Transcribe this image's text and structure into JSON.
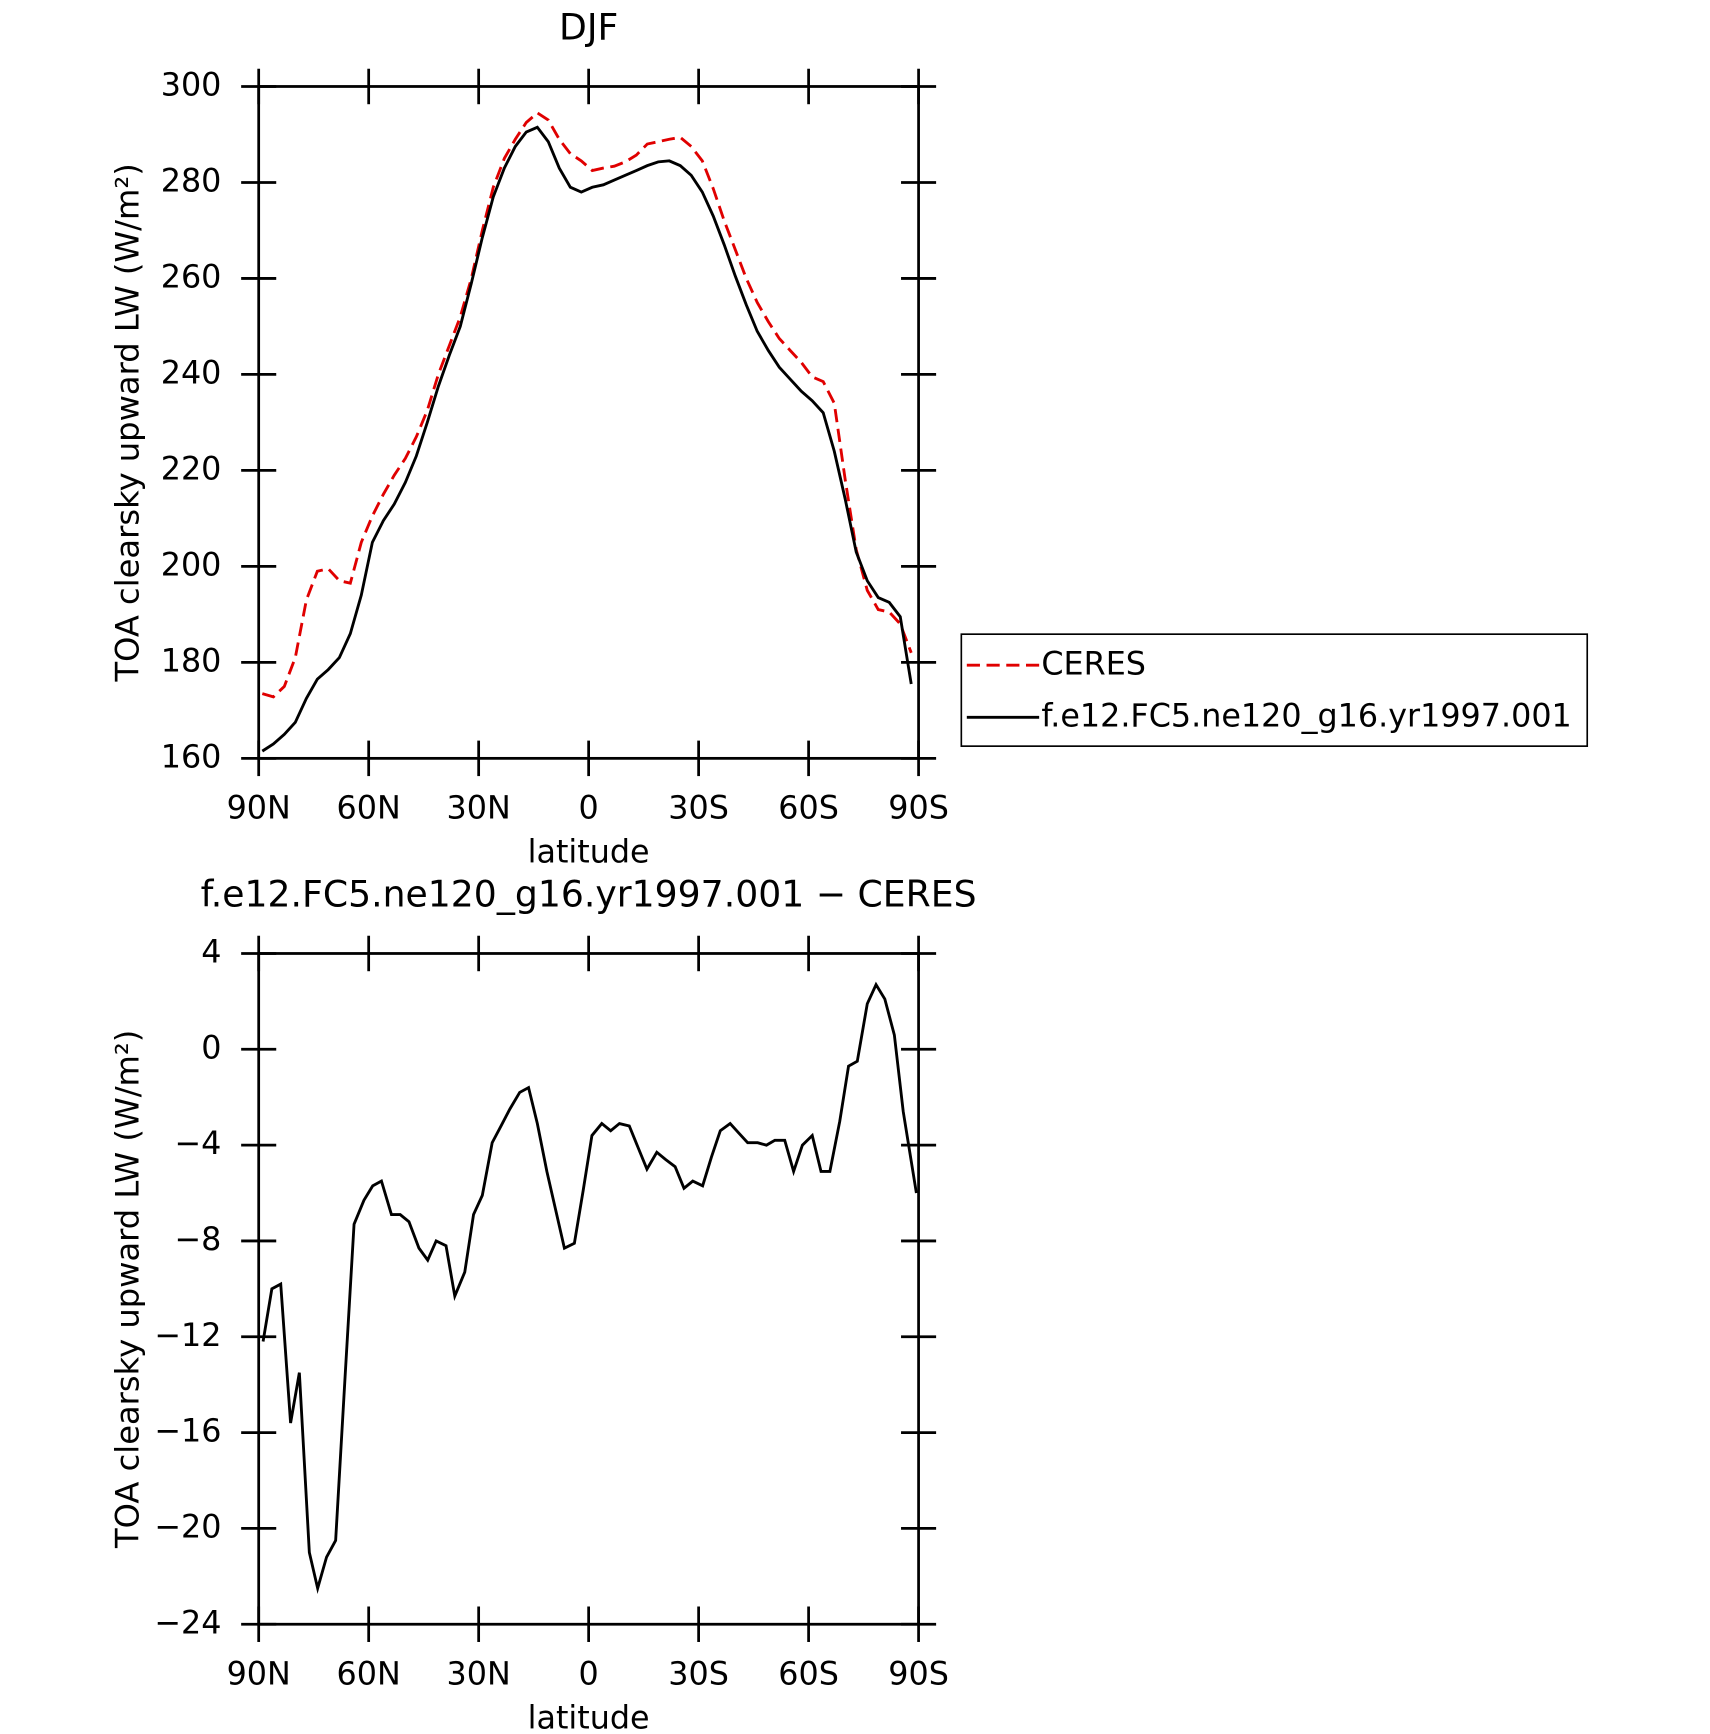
{
  "chart_data": [
    {
      "type": "line",
      "title": "DJF",
      "xlabel": "latitude",
      "ylabel": "TOA clearsky upward LW (W/m²)",
      "x": [
        89,
        86,
        83,
        80,
        77,
        74,
        71,
        68,
        65,
        62,
        59,
        56,
        53,
        50,
        47,
        44,
        41,
        38,
        35,
        32,
        29,
        26,
        23,
        20,
        17,
        14,
        11,
        8,
        5,
        2,
        -1,
        -4,
        -7,
        -10,
        -13,
        -16,
        -19,
        -22,
        -25,
        -28,
        -31,
        -34,
        -37,
        -40,
        -43,
        -46,
        -49,
        -52,
        -55,
        -58,
        -61,
        -64,
        -67,
        -70,
        -73,
        -76,
        -79,
        -82,
        -85,
        -88
      ],
      "series": [
        {
          "name": "CERES",
          "color": "#e00000",
          "linestyle": "dashed",
          "values": [
            173.5,
            172.8,
            175,
            181,
            193,
            199,
            199.5,
            197,
            196.5,
            205,
            210.5,
            215,
            219,
            222.5,
            227,
            232.5,
            240,
            246,
            252,
            260,
            270,
            279,
            285,
            289,
            292.5,
            294.5,
            293,
            289,
            286,
            284.5,
            282.5,
            283,
            283.4,
            284.3,
            285.7,
            288,
            288.5,
            289,
            289.4,
            287.5,
            284.5,
            278.7,
            272,
            266,
            260,
            255,
            251,
            247.5,
            245,
            242.5,
            239.5,
            238.5,
            234,
            218,
            203.5,
            195,
            191,
            190.5,
            188,
            182
          ]
        },
        {
          "name": "f.e12.FC5.ne120_g16.yr1997.001",
          "color": "#000000",
          "linestyle": "solid",
          "values": [
            161.5,
            163,
            165,
            167.5,
            172.5,
            176.5,
            178.5,
            181,
            186,
            194,
            205,
            209.5,
            213,
            217.5,
            223,
            230,
            237.5,
            244,
            250,
            259,
            268.5,
            277,
            283,
            287.5,
            290.5,
            291.5,
            288.5,
            283,
            279,
            278,
            279,
            279.5,
            280.5,
            281.5,
            282.5,
            283.5,
            284.3,
            284.5,
            283.5,
            281.5,
            278,
            273,
            267,
            260.5,
            254.5,
            249,
            245,
            241.5,
            239,
            236.5,
            234.5,
            232,
            224,
            214,
            203,
            197,
            193.5,
            192.5,
            189.5,
            175.5
          ]
        }
      ],
      "xlim": [
        90,
        -90
      ],
      "xticks": [
        {
          "value": 90,
          "label": "90N"
        },
        {
          "value": 60,
          "label": "60N"
        },
        {
          "value": 30,
          "label": "30N"
        },
        0,
        {
          "value": -30,
          "label": "30S"
        },
        {
          "value": -60,
          "label": "60S"
        },
        {
          "value": -90,
          "label": "90S"
        }
      ],
      "ylim": [
        160,
        300
      ],
      "yticks": [
        160,
        180,
        200,
        220,
        240,
        260,
        280,
        300
      ],
      "legend": "right"
    },
    {
      "type": "line",
      "title": "f.e12.FC5.ne120_g16.yr1997.001 − CERES",
      "xlabel": "latitude",
      "ylabel": "TOA clearsky upward LW (W/m²)",
      "x": [
        88.8,
        86.4,
        84,
        81.3,
        78.9,
        76.2,
        73.9,
        71.5,
        69,
        66.4,
        64,
        61.3,
        58.9,
        56.5,
        53.8,
        51.4,
        49,
        46.3,
        43.9,
        41.6,
        38.9,
        36.5,
        33.8,
        31.4,
        29,
        26.3,
        23.9,
        21.5,
        18.8,
        16.4,
        14,
        11.4,
        9,
        6.6,
        3.9,
        1.5,
        -0.9,
        -3.6,
        -6,
        -8.4,
        -11.1,
        -13.5,
        -15.9,
        -18.6,
        -21,
        -23.6,
        -26,
        -28.4,
        -31.1,
        -33.5,
        -35.9,
        -38.6,
        -41,
        -43.4,
        -46.1,
        -48.5,
        -50.8,
        -53.5,
        -55.9,
        -58.3,
        -61,
        -63.4,
        -65.8,
        -68.5,
        -70.9,
        -73.3,
        -76,
        -78.4,
        -80.8,
        -83.4,
        -85.8,
        -89.4
      ],
      "values": [
        -12.2,
        -10,
        -9.8,
        -15.6,
        -13.5,
        -21,
        -22.5,
        -21.2,
        -20.5,
        -13.6,
        -7.3,
        -6.3,
        -5.7,
        -5.5,
        -6.9,
        -6.9,
        -7.2,
        -8.3,
        -8.8,
        -8,
        -8.2,
        -10.3,
        -9.3,
        -6.9,
        -6.1,
        -3.9,
        -3.2,
        -2.5,
        -1.8,
        -1.6,
        -3.1,
        -5.1,
        -6.7,
        -8.3,
        -8.1,
        -5.9,
        -3.6,
        -3.1,
        -3.4,
        -3.1,
        -3.2,
        -4.1,
        -5,
        -4.3,
        -4.6,
        -4.9,
        -5.8,
        -5.5,
        -5.7,
        -4.5,
        -3.4,
        -3.1,
        -3.5,
        -3.9,
        -3.9,
        -4,
        -3.8,
        -3.8,
        -5.1,
        -4,
        -3.6,
        -5.1,
        -5.1,
        -3,
        -0.7,
        -0.5,
        1.9,
        2.7,
        2.1,
        0.6,
        -2.6,
        -6
      ],
      "color": "#000000",
      "xlim": [
        90,
        -90
      ],
      "xticks": [
        {
          "value": 90,
          "label": "90N"
        },
        {
          "value": 60,
          "label": "60N"
        },
        {
          "value": 30,
          "label": "30N"
        },
        0,
        {
          "value": -30,
          "label": "30S"
        },
        {
          "value": -60,
          "label": "60S"
        },
        {
          "value": -90,
          "label": "90S"
        }
      ],
      "ylim": [
        -24,
        4
      ],
      "yticks": [
        {
          "value": -24,
          "label": "−24"
        },
        {
          "value": -20,
          "label": "−20"
        },
        {
          "value": -16,
          "label": "−16"
        },
        {
          "value": -12,
          "label": "−12"
        },
        {
          "value": -8,
          "label": "−8"
        },
        {
          "value": -4,
          "label": "−4"
        },
        0,
        4
      ]
    }
  ]
}
